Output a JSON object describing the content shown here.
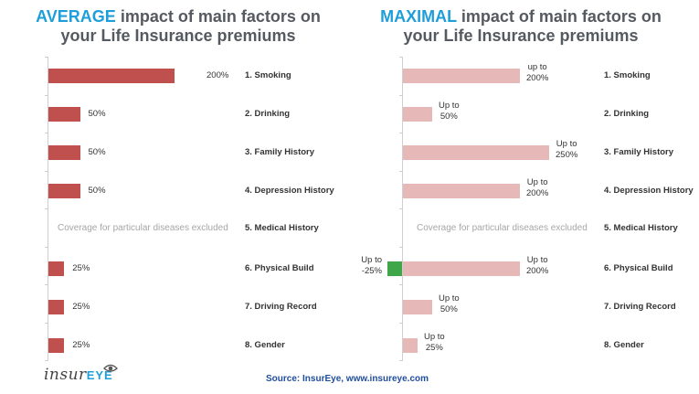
{
  "left_title": {
    "highlight": "AVERAGE",
    "rest_line1": " impact of main factors on",
    "line2": "your Life Insurance premiums"
  },
  "right_title": {
    "highlight": "MAXIMAL",
    "rest_line1": " impact of main factors on",
    "line2": "your Life Insurance premiums"
  },
  "source": "Source: InsurEye, www.insureye.com",
  "logo": {
    "part1": "insur",
    "part2": "EYE",
    "icon": "eye-icon"
  },
  "colors": {
    "average_bar": "#c0504d",
    "maximal_bar": "#e6b9b8",
    "negative_bar": "#3fa64a",
    "title_highlight": "#1f9fd9",
    "source_text": "#1f4e9c"
  },
  "chart_data": [
    {
      "type": "bar",
      "orientation": "horizontal",
      "categories": [
        "1. Smoking",
        "2. Drinking",
        "3. Family History",
        "4. Depression History",
        "5. Medical History",
        "6. Physical Build",
        "7. Driving Record",
        "8. Gender"
      ],
      "series": [
        {
          "values": [
            200,
            50,
            50,
            50,
            null,
            25,
            25,
            25
          ]
        }
      ],
      "data_labels": [
        "200%",
        "50%",
        "50%",
        "50%",
        "",
        "25%",
        "25%",
        "25%"
      ],
      "notes": [
        {
          "category_index": 4,
          "text": "Coverage for particular diseases excluded"
        }
      ],
      "xlim": [
        0,
        200
      ],
      "unit": "%",
      "grid": false,
      "legend": "none"
    },
    {
      "type": "bar",
      "orientation": "horizontal",
      "categories": [
        "1. Smoking",
        "2. Drinking",
        "3. Family History",
        "4. Depression History",
        "5. Medical History",
        "6. Physical Build",
        "7. Driving Record",
        "8. Gender"
      ],
      "series": [
        {
          "values": [
            200,
            50,
            250,
            200,
            null,
            200,
            50,
            25
          ]
        }
      ],
      "negative_values": [
        {
          "category_index": 5,
          "value": -25,
          "label": [
            "Up to",
            "-25%"
          ]
        }
      ],
      "data_labels": [
        [
          "up to",
          "200%"
        ],
        [
          "Up to",
          "50%"
        ],
        [
          "Up to",
          "250%"
        ],
        [
          "Up to",
          "200%"
        ],
        [],
        [
          "Up to",
          "200%"
        ],
        [
          "Up to",
          "50%"
        ],
        [
          "Up to",
          "25%"
        ]
      ],
      "notes": [
        {
          "category_index": 4,
          "text": "Coverage for particular diseases excluded"
        }
      ],
      "xlim": [
        -25,
        250
      ],
      "unit": "%",
      "grid": false,
      "legend": "none"
    }
  ]
}
